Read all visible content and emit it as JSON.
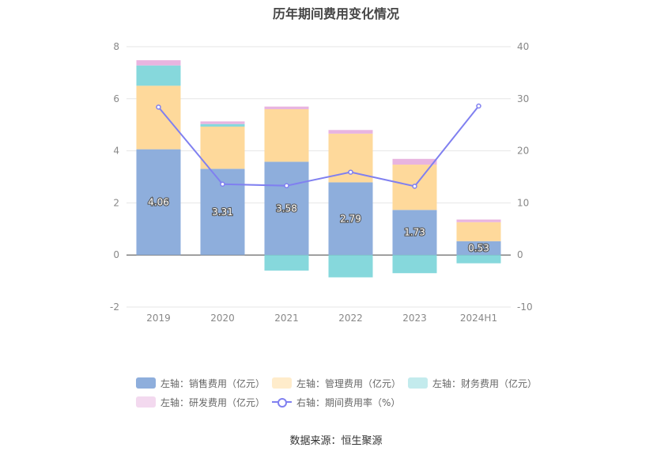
{
  "title": "历年期间费用变化情况",
  "source": "数据来源：恒生聚源",
  "chart_data": {
    "type": "bar",
    "stacked": true,
    "categories": [
      "2019",
      "2020",
      "2021",
      "2022",
      "2023",
      "2024H1"
    ],
    "series": [
      {
        "name": "左轴：销售费用（亿元）",
        "axis": "left",
        "color": "#8eaedc",
        "values": [
          4.06,
          3.31,
          3.58,
          2.79,
          1.73,
          0.53
        ]
      },
      {
        "name": "左轴：管理费用（亿元）",
        "axis": "left",
        "color": "#fed99b",
        "values": [
          2.44,
          1.62,
          2.02,
          1.87,
          1.74,
          0.73
        ]
      },
      {
        "name": "左轴：财务费用（亿元）",
        "axis": "left",
        "color": "#86d8dc",
        "values": [
          0.78,
          0.1,
          -0.6,
          -0.86,
          -0.7,
          -0.32
        ]
      },
      {
        "name": "左轴：研发费用（亿元）",
        "axis": "left",
        "color": "#e8b4e0",
        "values": [
          0.2,
          0.1,
          0.1,
          0.14,
          0.22,
          0.1
        ]
      },
      {
        "name": "右轴：期间费用率（%）",
        "axis": "right",
        "type": "line",
        "color": "#8080f0",
        "values": [
          28.4,
          13.6,
          13.3,
          15.9,
          13.2,
          28.6
        ]
      }
    ],
    "data_labels": [
      "4.06",
      "3.31",
      "3.58",
      "2.79",
      "1.73",
      "0.53"
    ],
    "ylim_left": [
      -2,
      8
    ],
    "yticks_left": [
      "-2",
      "0",
      "2",
      "4",
      "6",
      "8"
    ],
    "ylim_right": [
      -10,
      40
    ],
    "yticks_right": [
      "-10",
      "0",
      "10",
      "20",
      "30",
      "40"
    ],
    "grid": true,
    "legend_position": "bottom"
  }
}
